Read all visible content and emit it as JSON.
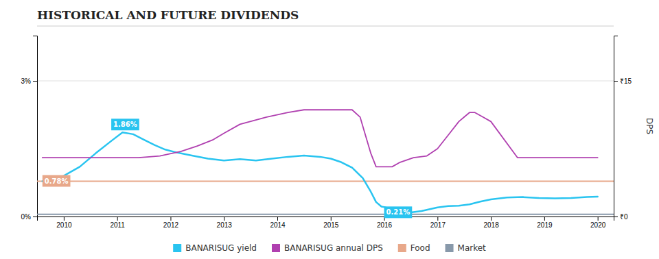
{
  "chart_data": {
    "type": "line",
    "title": "HISTORICAL AND FUTURE DIVIDENDS",
    "xlim": [
      2009.5,
      2020.3
    ],
    "xticks": [
      2010,
      2011,
      2012,
      2013,
      2014,
      2015,
      2016,
      2017,
      2018,
      2019,
      2020
    ],
    "ylim": [
      0,
      0.04
    ],
    "yticks": [
      {
        "value": 0,
        "label": "0%"
      },
      {
        "value": 0.03,
        "label": "3%"
      }
    ],
    "y2lim": [
      0,
      20
    ],
    "y2ticks": [
      {
        "value": 0,
        "label": "₹0"
      },
      {
        "value": 15,
        "label": "₹15"
      }
    ],
    "y2label": "DPS",
    "grid": true,
    "legend": "bottom",
    "series": [
      {
        "name": "BANARISUG yield",
        "color": "#29c4f0",
        "x": [
          2009.6,
          2009.8,
          2010.0,
          2010.3,
          2010.6,
          2010.9,
          2011.1,
          2011.3,
          2011.5,
          2011.7,
          2011.9,
          2012.1,
          2012.4,
          2012.7,
          2013.0,
          2013.3,
          2013.6,
          2013.9,
          2014.2,
          2014.5,
          2014.8,
          2015.0,
          2015.2,
          2015.4,
          2015.6,
          2015.75,
          2015.85,
          2015.95,
          2016.0,
          2016.1,
          2016.2,
          2016.35,
          2016.5,
          2016.7,
          2017.0,
          2017.2,
          2017.4,
          2017.6,
          2017.8,
          2018.0,
          2018.3,
          2018.6,
          2018.9,
          2019.2,
          2019.5,
          2019.8,
          2020.0
        ],
        "values": [
          0.0078,
          0.008,
          0.009,
          0.011,
          0.014,
          0.0168,
          0.0186,
          0.0182,
          0.017,
          0.0158,
          0.0148,
          0.0142,
          0.0135,
          0.0128,
          0.0124,
          0.0127,
          0.0124,
          0.0128,
          0.0132,
          0.0135,
          0.0132,
          0.0128,
          0.012,
          0.0108,
          0.0085,
          0.0055,
          0.0032,
          0.0022,
          0.0021,
          0.0018,
          0.0013,
          0.001,
          0.0009,
          0.0012,
          0.002,
          0.0023,
          0.0024,
          0.0027,
          0.0033,
          0.0038,
          0.0042,
          0.0043,
          0.0041,
          0.004,
          0.0041,
          0.0043,
          0.0044
        ]
      },
      {
        "name": "BANARISUG annual DPS",
        "color": "#b040b0",
        "axis": "y2",
        "x": [
          2009.6,
          2010.0,
          2010.5,
          2011.0,
          2011.4,
          2011.8,
          2012.2,
          2012.5,
          2012.8,
          2013.0,
          2013.3,
          2013.8,
          2014.2,
          2014.5,
          2014.8,
          2015.0,
          2015.2,
          2015.4,
          2015.55,
          2015.65,
          2015.75,
          2015.85,
          2016.0,
          2016.15,
          2016.3,
          2016.55,
          2016.8,
          2017.0,
          2017.2,
          2017.4,
          2017.5,
          2017.6,
          2017.7,
          2017.85,
          2018.0,
          2018.5,
          2019.0,
          2019.5,
          2020.0
        ],
        "values": [
          6.5,
          6.5,
          6.5,
          6.5,
          6.5,
          6.7,
          7.2,
          7.8,
          8.5,
          9.2,
          10.2,
          11.0,
          11.5,
          11.8,
          11.8,
          11.8,
          11.8,
          11.8,
          11.0,
          9.0,
          7.0,
          5.5,
          5.5,
          5.5,
          6.0,
          6.5,
          6.7,
          7.5,
          9.0,
          10.5,
          11.0,
          11.5,
          11.5,
          11.0,
          10.5,
          6.5,
          6.5,
          6.5,
          6.5
        ]
      },
      {
        "name": "Food",
        "color": "#e8a88a",
        "type": "hline",
        "values": [
          0.0078
        ]
      },
      {
        "name": "Market",
        "color": "#8899aa",
        "type": "hline",
        "values": [
          0.0005
        ]
      }
    ],
    "annotations": [
      {
        "text": "1.86%",
        "x": 2011.1,
        "y": 0.0186,
        "color": "#29c4f0"
      },
      {
        "text": "0.78%",
        "x": 2009.6,
        "y": 0.0078,
        "color": "#e8a88a"
      },
      {
        "text": "0.21%",
        "x": 2016.0,
        "y": 0.0021,
        "color": "#29c4f0"
      }
    ]
  }
}
